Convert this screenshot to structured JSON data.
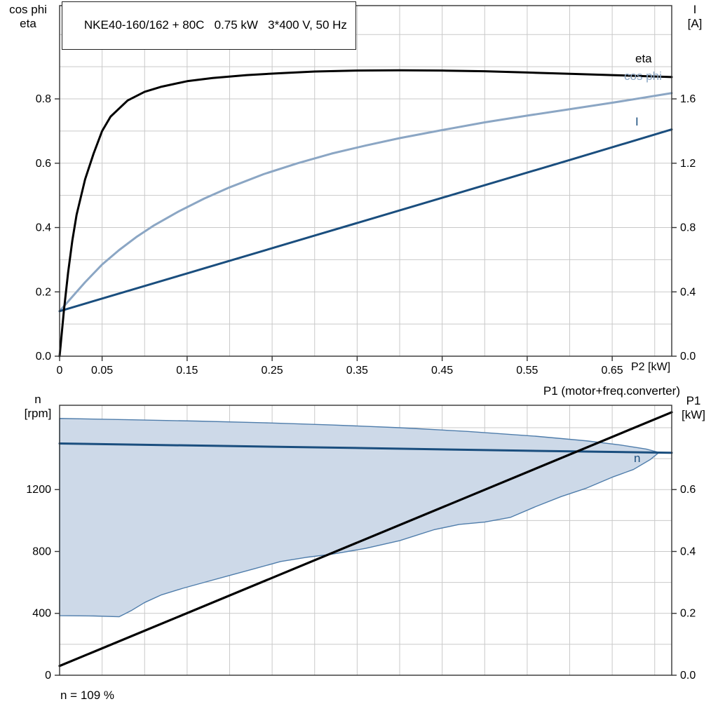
{
  "labels": {
    "title": "NKE40-160/162 + 80C   0.75 kW   3*400 V, 50 Hz",
    "top_left_axis_1": "cos phi",
    "top_left_axis_2": "eta",
    "top_right_axis_1": "I",
    "top_right_axis_2": "[A]",
    "bottom_left_axis_1": "n",
    "bottom_left_axis_2": "[rpm]",
    "bottom_right_axis_1": "P1",
    "bottom_right_axis_2": "[kW]",
    "x_axis_label": "P2 [kW]",
    "p1_curve_label": "P1 (motor+freq.converter)",
    "eta_curve_label": "eta",
    "cosphi_curve_label": "cos phi",
    "current_curve_label": "I",
    "n_curve_label": "n",
    "speed_note": "n = 109 %"
  },
  "colors": {
    "eta": "#000000",
    "cos_phi": "#8ba6c4",
    "current": "#1a4e7e",
    "n": "#1a4e7e",
    "p1": "#000000",
    "band_fill": "#cdd9e8",
    "band_edge": "#4f7dab",
    "grid": "#c9c9c9",
    "frame": "#333333"
  },
  "chart_data": [
    {
      "id": "top",
      "type": "line",
      "title": "NKE40-160/162 + 80C   0.75 kW   3*400 V, 50 Hz",
      "xlabel": "P2 [kW]",
      "ylabel_left": "cos phi / eta",
      "ylabel_right": "I [A]",
      "xlim": [
        0,
        0.72
      ],
      "ylim_left": [
        0,
        1.09
      ],
      "ylim_right": [
        0,
        2.18
      ],
      "grid": {
        "x": 0.05,
        "y_left": 0.1
      },
      "xticks": [
        {
          "v": 0,
          "label": "0"
        },
        {
          "v": 0.05,
          "label": "0.05"
        },
        {
          "v": 0.15,
          "label": "0.15"
        },
        {
          "v": 0.25,
          "label": "0.25"
        },
        {
          "v": 0.35,
          "label": "0.35"
        },
        {
          "v": 0.45,
          "label": "0.45"
        },
        {
          "v": 0.55,
          "label": "0.55"
        },
        {
          "v": 0.65,
          "label": "0.65"
        }
      ],
      "yticks_left": [
        {
          "v": 0,
          "label": "0.0"
        },
        {
          "v": 0.2,
          "label": "0.2"
        },
        {
          "v": 0.4,
          "label": "0.4"
        },
        {
          "v": 0.6,
          "label": "0.6"
        },
        {
          "v": 0.8,
          "label": "0.8"
        }
      ],
      "yticks_right": [
        {
          "v": 0,
          "label": "0.0"
        },
        {
          "v": 0.4,
          "label": "0.4"
        },
        {
          "v": 0.8,
          "label": "0.8"
        },
        {
          "v": 1.2,
          "label": "1.2"
        },
        {
          "v": 1.6,
          "label": "1.6"
        }
      ],
      "series": [
        {
          "name": "cos phi",
          "axis": "left",
          "color": "#8ba6c4",
          "width": 3,
          "x": [
            0,
            0.01,
            0.02,
            0.03,
            0.05,
            0.07,
            0.09,
            0.11,
            0.14,
            0.17,
            0.2,
            0.24,
            0.28,
            0.32,
            0.36,
            0.4,
            0.45,
            0.5,
            0.55,
            0.6,
            0.65,
            0.72
          ],
          "y": [
            0.14,
            0.17,
            0.2,
            0.23,
            0.285,
            0.33,
            0.37,
            0.405,
            0.45,
            0.49,
            0.525,
            0.566,
            0.6,
            0.63,
            0.655,
            0.678,
            0.703,
            0.727,
            0.748,
            0.768,
            0.788,
            0.818
          ]
        },
        {
          "name": "I",
          "axis": "right",
          "color": "#1a4e7e",
          "width": 3,
          "x": [
            0,
            0.15,
            0.3,
            0.45,
            0.6,
            0.72
          ],
          "y": [
            0.28,
            0.515,
            0.75,
            0.985,
            1.22,
            1.41
          ]
        },
        {
          "name": "eta",
          "axis": "left",
          "color": "#000000",
          "width": 3,
          "x": [
            0,
            0.005,
            0.01,
            0.015,
            0.02,
            0.03,
            0.04,
            0.05,
            0.06,
            0.08,
            0.1,
            0.12,
            0.15,
            0.18,
            0.22,
            0.26,
            0.3,
            0.35,
            0.4,
            0.45,
            0.5,
            0.55,
            0.6,
            0.65,
            0.72
          ],
          "y": [
            0,
            0.14,
            0.26,
            0.36,
            0.44,
            0.55,
            0.63,
            0.7,
            0.745,
            0.795,
            0.822,
            0.838,
            0.855,
            0.865,
            0.874,
            0.88,
            0.885,
            0.888,
            0.889,
            0.888,
            0.886,
            0.882,
            0.878,
            0.874,
            0.868
          ]
        }
      ]
    },
    {
      "id": "bottom",
      "type": "line",
      "title": "P1 (motor+freq.converter)",
      "xlabel": "",
      "ylabel_left": "n [rpm]",
      "ylabel_right": "P1 [kW]",
      "annotation": "n = 109 %",
      "xlim": [
        0,
        0.72
      ],
      "ylim_left": [
        0,
        1745
      ],
      "ylim_right": [
        0,
        0.8725
      ],
      "grid": {
        "x": 0.05,
        "y_left": 200
      },
      "xticks": [],
      "yticks_left": [
        {
          "v": 0,
          "label": "0"
        },
        {
          "v": 400,
          "label": "400"
        },
        {
          "v": 800,
          "label": "800"
        },
        {
          "v": 1200,
          "label": "1200"
        }
      ],
      "yticks_right": [
        {
          "v": 0,
          "label": "0.0"
        },
        {
          "v": 0.2,
          "label": "0.2"
        },
        {
          "v": 0.4,
          "label": "0.4"
        },
        {
          "v": 0.6,
          "label": "0.6"
        }
      ],
      "series": [
        {
          "name": "speed range",
          "type": "band",
          "axis": "left",
          "fill": "#cdd9e8",
          "edge": "#4f7dab",
          "upper": {
            "x": [
              0,
              0.08,
              0.16,
              0.24,
              0.32,
              0.4,
              0.48,
              0.56,
              0.62,
              0.66,
              0.69,
              0.705
            ],
            "y": [
              1660,
              1652,
              1643,
              1632,
              1618,
              1600,
              1576,
              1545,
              1515,
              1488,
              1462,
              1440
            ]
          },
          "lower": {
            "x": [
              0,
              0.04,
              0.07,
              0.085,
              0.1,
              0.12,
              0.145,
              0.17,
              0.2,
              0.23,
              0.26,
              0.29,
              0.32,
              0.36,
              0.4,
              0.44,
              0.47,
              0.5,
              0.53,
              0.56,
              0.59,
              0.62,
              0.65,
              0.675,
              0.695,
              0.705
            ],
            "y": [
              385,
              383,
              378,
              420,
              470,
              520,
              562,
              600,
              645,
              690,
              735,
              762,
              782,
              820,
              870,
              940,
              975,
              990,
              1020,
              1090,
              1155,
              1210,
              1280,
              1330,
              1395,
              1440
            ]
          }
        },
        {
          "name": "n",
          "axis": "left",
          "color": "#1a4e7e",
          "width": 3,
          "x": [
            0,
            0.18,
            0.36,
            0.54,
            0.72
          ],
          "y": [
            1498,
            1483,
            1468,
            1452,
            1438
          ]
        },
        {
          "name": "P1",
          "axis": "right",
          "color": "#000000",
          "width": 3.2,
          "x": [
            0,
            0.72
          ],
          "y": [
            0.03,
            0.85
          ]
        }
      ]
    }
  ]
}
